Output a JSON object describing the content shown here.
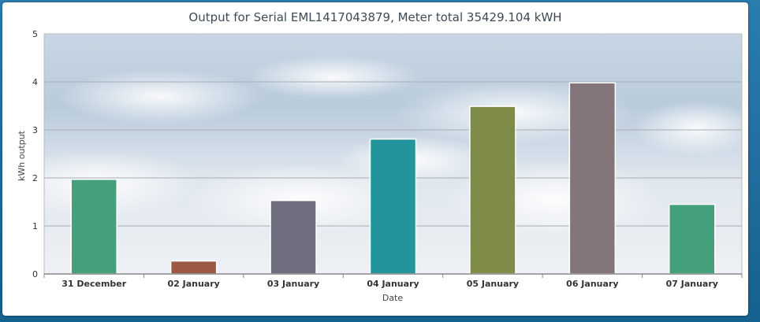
{
  "chart_data": {
    "type": "bar",
    "title": "Output for Serial EML1417043879, Meter total 35429.104 kWH",
    "xlabel": "Date",
    "ylabel": "kWh output",
    "ylim": [
      0,
      5
    ],
    "yticks": [
      0,
      1,
      2,
      3,
      4,
      5
    ],
    "grid": true,
    "categories": [
      "31 December",
      "02 January",
      "03 January",
      "04 January",
      "05 January",
      "06 January",
      "07 January"
    ],
    "values": [
      1.97,
      0.27,
      1.53,
      2.81,
      3.49,
      3.98,
      1.45
    ],
    "colors": [
      "#44a07a",
      "#9c5844",
      "#6f6e7e",
      "#22959c",
      "#7f8c49",
      "#84757b",
      "#44a07a"
    ]
  }
}
